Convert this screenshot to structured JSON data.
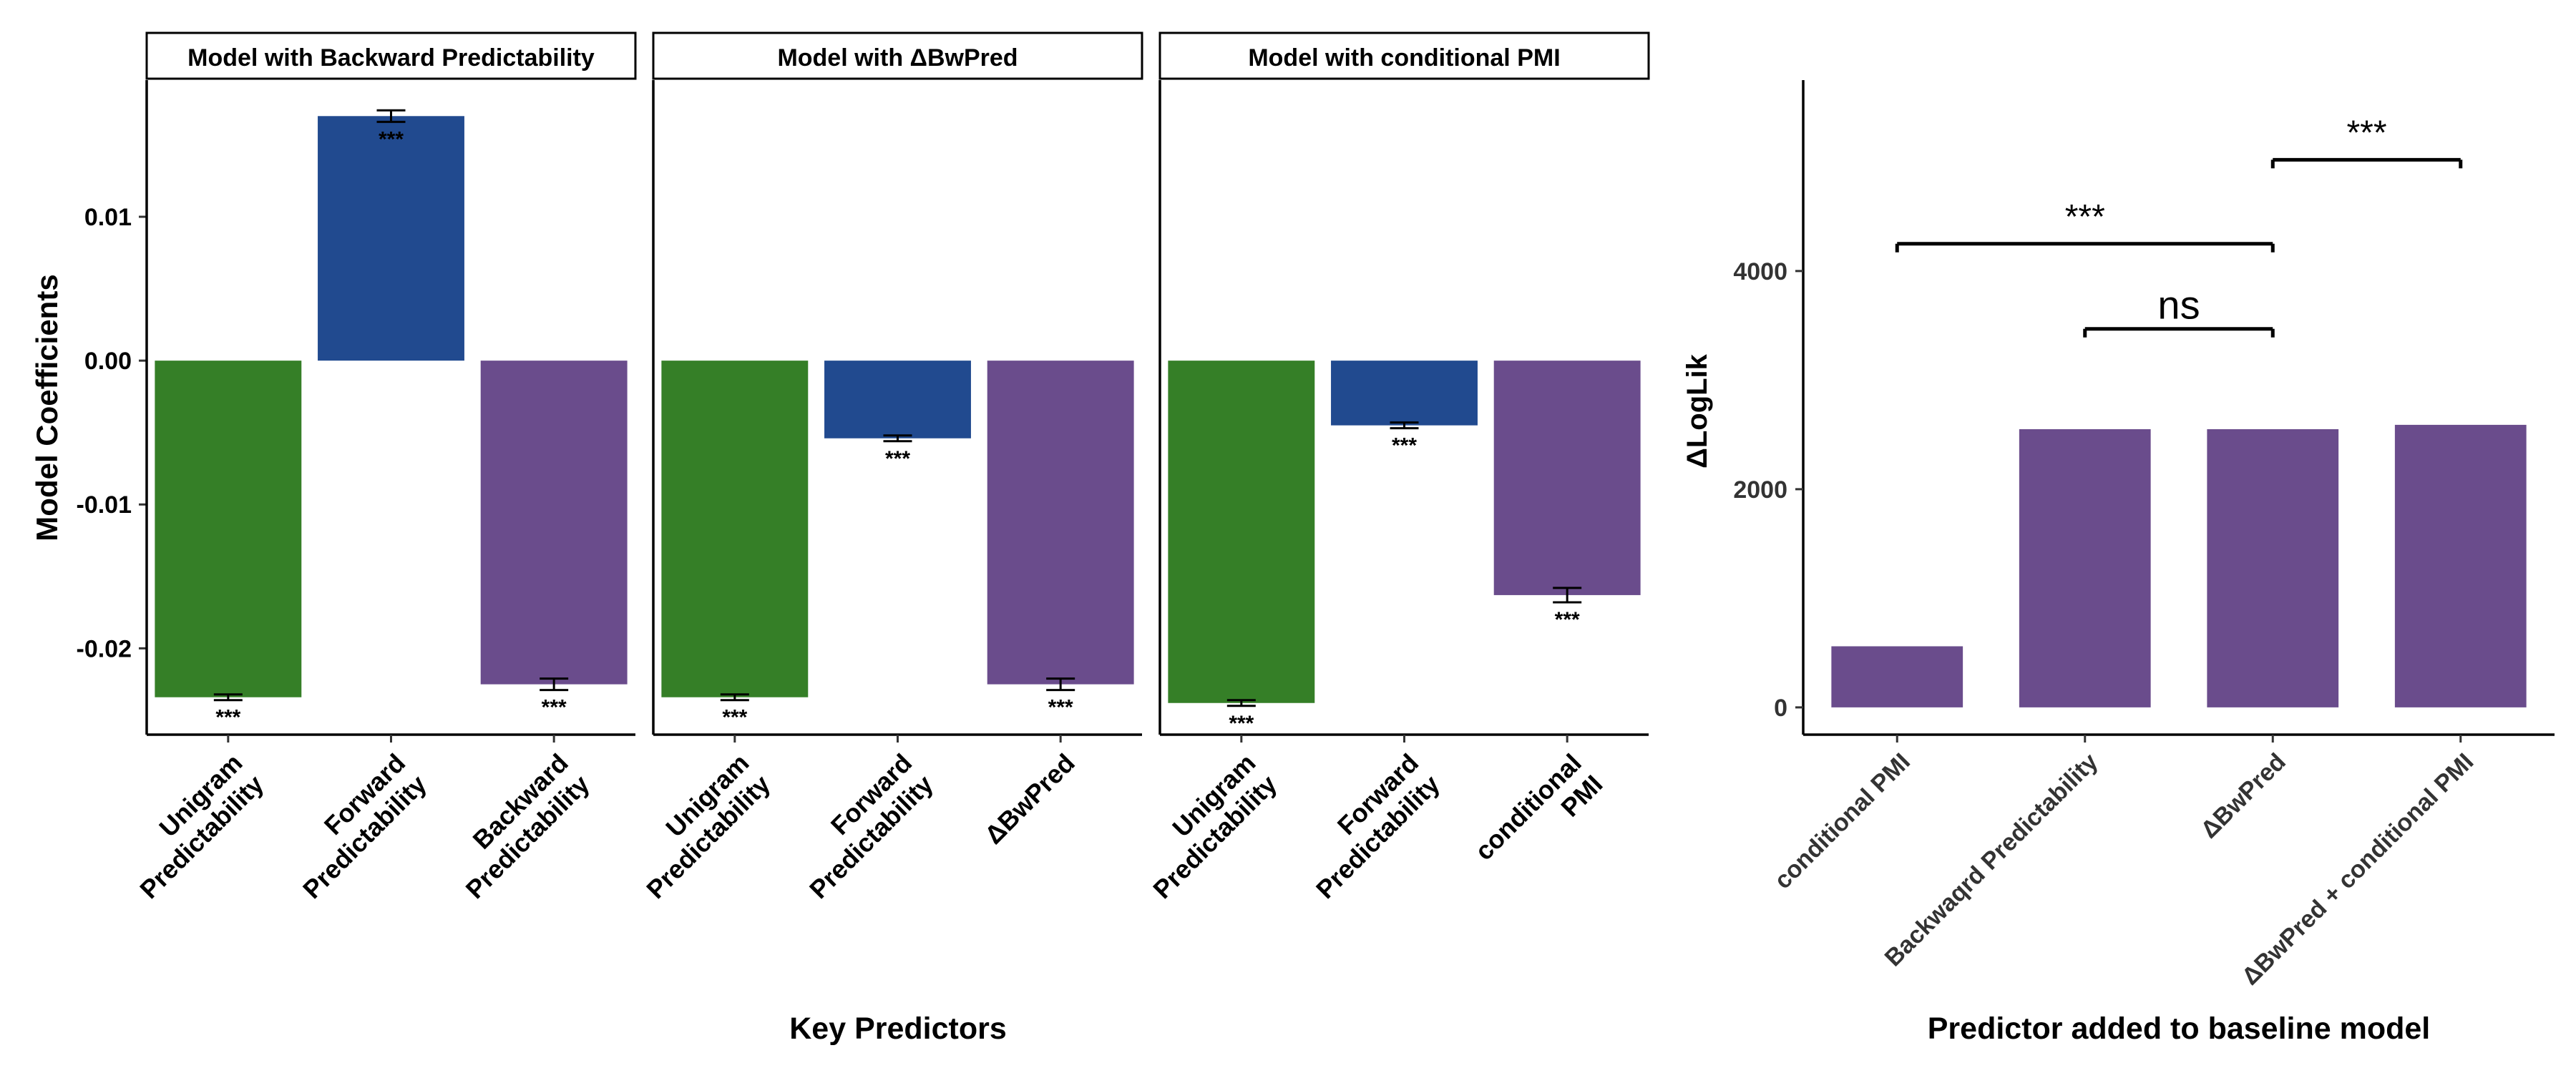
{
  "chart_data": [
    {
      "type": "bar",
      "panel_title": "Model with Backward Predictability",
      "categories": [
        "Unigram\nPredictability",
        "Forward\nPredictability",
        "Backward\nPredictability"
      ],
      "values": [
        -0.0234,
        0.017,
        -0.0225
      ],
      "errors": [
        0.0002,
        0.0004,
        0.0004
      ],
      "significance": [
        "***",
        "***",
        "***"
      ],
      "colors": [
        "#357f27",
        "#214a8f",
        "#6a4c8c"
      ],
      "ylabel": "Model Coefficients",
      "ylim": [
        -0.026,
        0.0195
      ],
      "yticks": [
        0.01,
        0.0,
        -0.01,
        -0.02
      ],
      "ytick_labels": [
        "0.01",
        "0.00",
        "-0.01",
        "-0.02"
      ]
    },
    {
      "type": "bar",
      "panel_title": "Model with ΔBwPred",
      "categories": [
        "Unigram\nPredictability",
        "Forward\nPredictability",
        "ΔBwPred"
      ],
      "values": [
        -0.0234,
        -0.0054,
        -0.0225
      ],
      "errors": [
        0.0002,
        0.0002,
        0.0004
      ],
      "significance": [
        "***",
        "***",
        "***"
      ],
      "colors": [
        "#357f27",
        "#214a8f",
        "#6a4c8c"
      ],
      "ylim": [
        -0.026,
        0.0195
      ]
    },
    {
      "type": "bar",
      "panel_title": "Model with conditional PMI",
      "categories": [
        "Unigram\nPredictability",
        "Forward\nPredictability",
        "conditional\nPMI"
      ],
      "values": [
        -0.0238,
        -0.0045,
        -0.0163
      ],
      "errors": [
        0.0002,
        0.0002,
        0.0005
      ],
      "significance": [
        "***",
        "***",
        "***"
      ],
      "colors": [
        "#357f27",
        "#214a8f",
        "#6a4c8c"
      ],
      "ylim": [
        -0.026,
        0.0195
      ]
    },
    {
      "type": "bar",
      "categories": [
        "conditional PMI",
        "Backwaqrd Predictability",
        "ΔBwPred",
        "ΔBwPred + conditional PMI"
      ],
      "values": [
        560,
        2550,
        2550,
        2590
      ],
      "colors": [
        "#6a4c8c",
        "#6a4c8c",
        "#6a4c8c",
        "#6a4c8c"
      ],
      "xlabel": "Predictor added to baseline model",
      "ylabel": "ΔLogLik",
      "ylim": [
        -250,
        5750
      ],
      "yticks": [
        0,
        2000,
        4000
      ],
      "ytick_labels": [
        "0",
        "2000",
        "4000"
      ],
      "comparisons": [
        {
          "from": 0,
          "to": 2,
          "value": 4250,
          "label": "***"
        },
        {
          "from": 1,
          "to": 2,
          "value": 3470,
          "label": "ns"
        },
        {
          "from": 2,
          "to": 3,
          "value": 5020,
          "label": "***"
        }
      ]
    }
  ],
  "shared_xlabel": "Key Predictors"
}
